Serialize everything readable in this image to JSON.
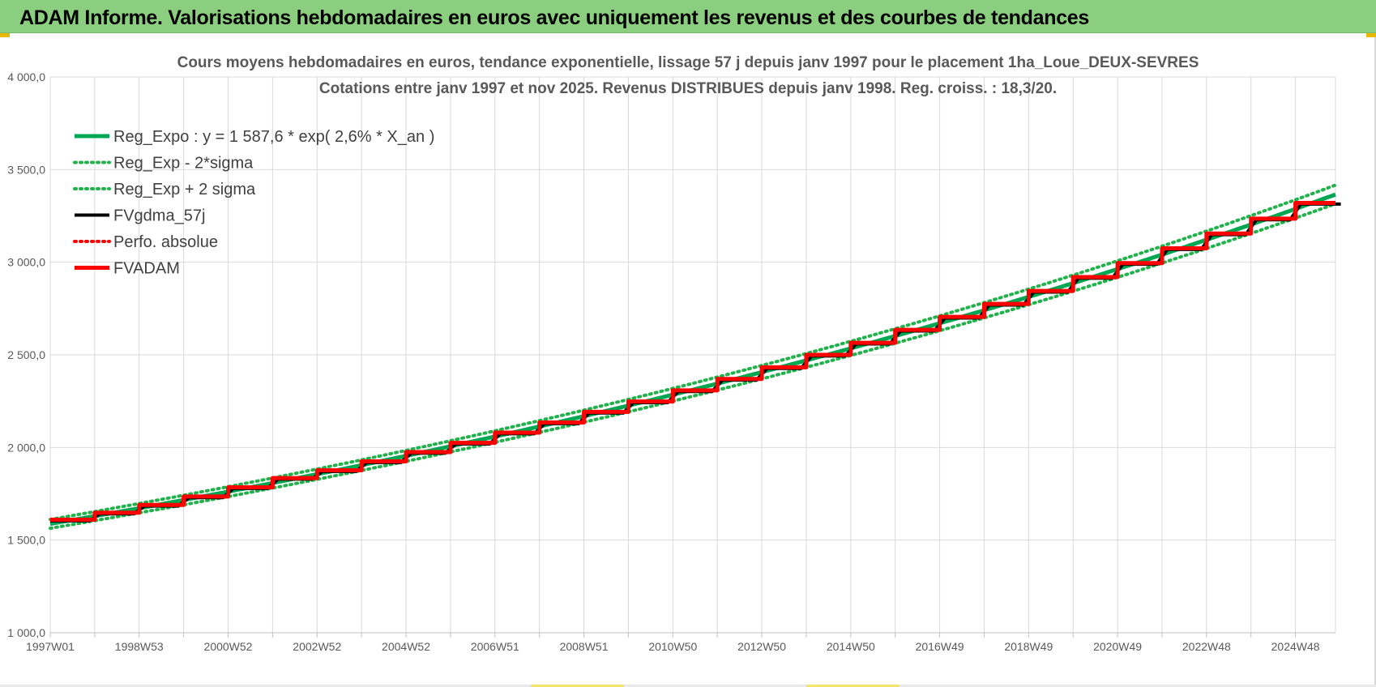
{
  "banner": {
    "title": "ADAM Informe. Valorisations hebdomadaires en euros avec uniquement les revenus et des courbes de tendances"
  },
  "colors": {
    "banner_bg": "#8cce7f",
    "reg_expo": "#00a651",
    "reg_band": "#22b14c",
    "fvgdma": "#000000",
    "perfo": "#ff0000",
    "fvadam": "#ff0000",
    "grid": "#d9d9d9"
  },
  "chart_data": {
    "type": "line",
    "title": "Cours moyens hebdomadaires en euros, tendance exponentielle, lissage 57 j depuis janv 1997  pour le placement 1ha_Loue_DEUX-SEVRES",
    "subtitle": "Cotations entre janv 1997 et nov 2025. Revenus  DISTRIBUES depuis janv 1998.  Reg. croiss. : 18,3/20.",
    "xlabel": "",
    "ylabel": "",
    "ylim": [
      1000,
      4000
    ],
    "yticks": [
      "1 000,0",
      "1 500,0",
      "2 000,0",
      "2 500,0",
      "3 000,0",
      "3 500,0",
      "4 000,0"
    ],
    "xticks": [
      "1997W01",
      "1998W53",
      "2000W52",
      "2002W52",
      "2004W52",
      "2006W51",
      "2008W51",
      "2010W50",
      "2012W50",
      "2014W50",
      "2016W49",
      "2018W49",
      "2020W49",
      "2022W48",
      "2024W48"
    ],
    "xlim_years": [
      1997.0,
      2025.9
    ],
    "grid": true,
    "legend_position": "top-left",
    "regression": {
      "a": 1587.6,
      "growth_rate": 0.026,
      "sigma_band": 0.015
    },
    "series": [
      {
        "name": "Reg_Expo : y = 1 587,6 * exp( 2,6% *  X_an )",
        "style": "solid",
        "color": "#00a651"
      },
      {
        "name": "Reg_Exp - 2*sigma",
        "style": "dotted",
        "color": "#22b14c"
      },
      {
        "name": "Reg_Exp + 2 sigma",
        "style": "dotted",
        "color": "#22b14c"
      },
      {
        "name": "FVgdma_57j",
        "style": "solid",
        "color": "#000000"
      },
      {
        "name": "Perfo. absolue",
        "style": "dotted",
        "color": "#ff0000"
      },
      {
        "name": "FVADAM",
        "style": "solid",
        "color": "#ff0000",
        "steps": [
          {
            "x": 1997.0,
            "y": 1610
          },
          {
            "x": 1998.0,
            "y": 1648
          },
          {
            "x": 1999.0,
            "y": 1690
          },
          {
            "x": 2000.0,
            "y": 1735
          },
          {
            "x": 2001.0,
            "y": 1785
          },
          {
            "x": 2002.0,
            "y": 1835
          },
          {
            "x": 2003.0,
            "y": 1877
          },
          {
            "x": 2004.0,
            "y": 1925
          },
          {
            "x": 2005.0,
            "y": 1975
          },
          {
            "x": 2006.0,
            "y": 2025
          },
          {
            "x": 2007.0,
            "y": 2080
          },
          {
            "x": 2008.0,
            "y": 2135
          },
          {
            "x": 2009.0,
            "y": 2192
          },
          {
            "x": 2010.0,
            "y": 2248
          },
          {
            "x": 2011.0,
            "y": 2308
          },
          {
            "x": 2012.0,
            "y": 2370
          },
          {
            "x": 2013.0,
            "y": 2433
          },
          {
            "x": 2014.0,
            "y": 2500
          },
          {
            "x": 2015.0,
            "y": 2565
          },
          {
            "x": 2016.0,
            "y": 2635
          },
          {
            "x": 2017.0,
            "y": 2705
          },
          {
            "x": 2018.0,
            "y": 2775
          },
          {
            "x": 2019.0,
            "y": 2845
          },
          {
            "x": 2020.0,
            "y": 2920
          },
          {
            "x": 2021.0,
            "y": 2995
          },
          {
            "x": 2022.0,
            "y": 3075
          },
          {
            "x": 2023.0,
            "y": 3155
          },
          {
            "x": 2024.0,
            "y": 3235
          },
          {
            "x": 2025.0,
            "y": 3320
          },
          {
            "x": 2025.9,
            "y": 3320
          }
        ]
      }
    ]
  }
}
